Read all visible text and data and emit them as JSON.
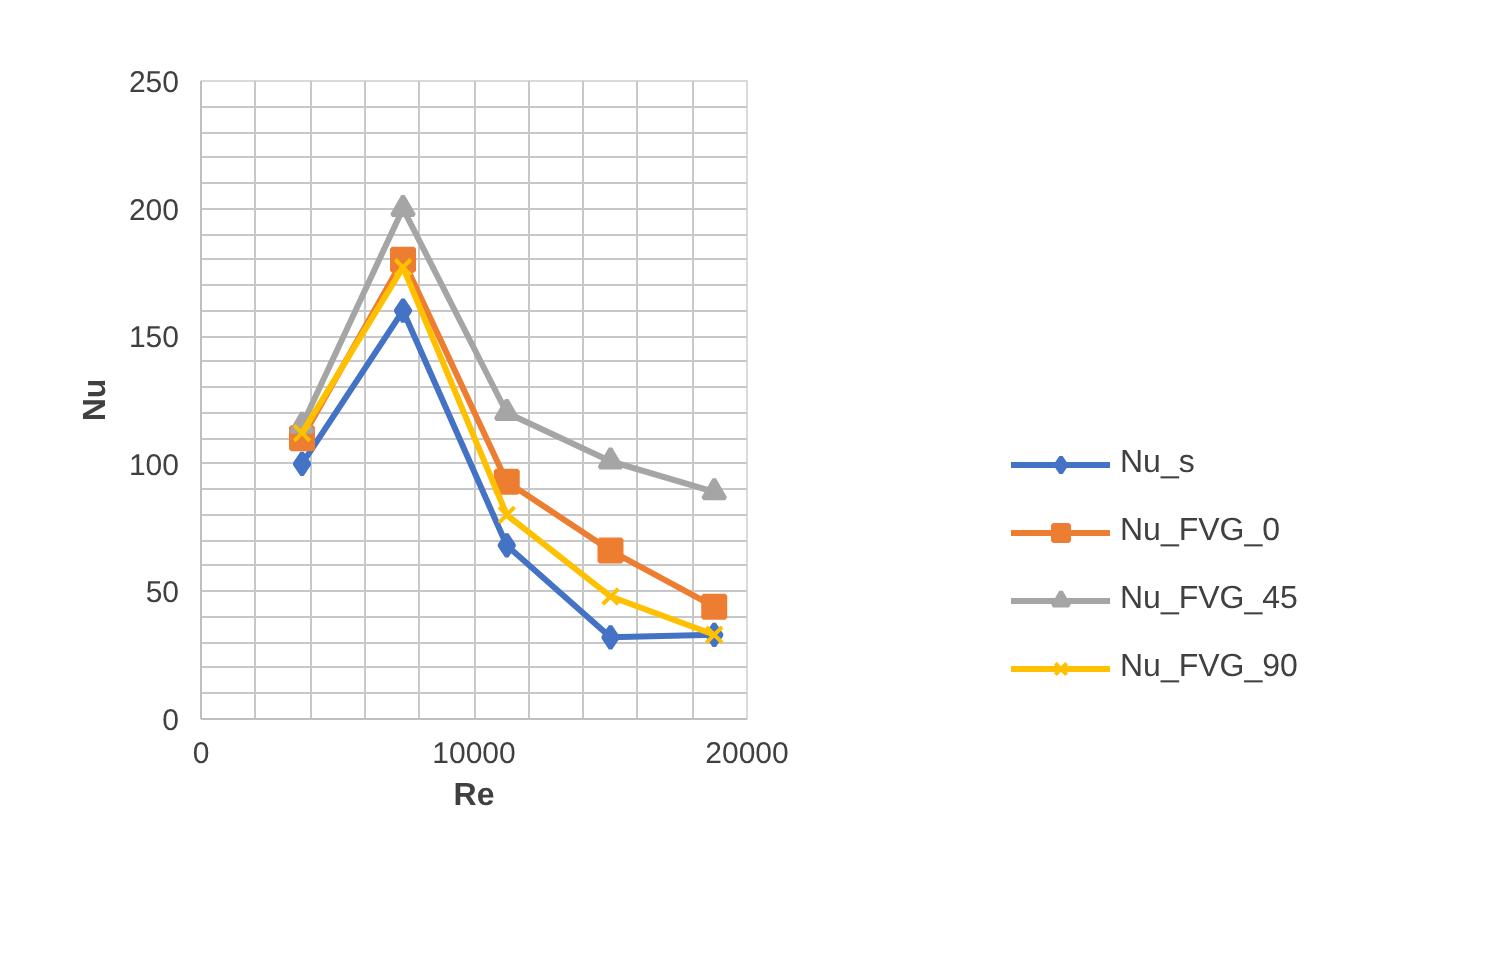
{
  "chart_data": {
    "type": "line",
    "xlabel": "Re",
    "ylabel": "Nu",
    "x": [
      3700,
      7400,
      11200,
      15000,
      18800
    ],
    "series": [
      {
        "name": "Nu_s",
        "color": "#4472c4",
        "marker": "diamond",
        "values": [
          100,
          160,
          68,
          32,
          33
        ]
      },
      {
        "name": "Nu_FVG_0",
        "color": "#ed7d31",
        "marker": "square",
        "values": [
          110,
          180,
          93,
          66,
          44
        ]
      },
      {
        "name": "Nu_FVG_45",
        "color": "#a5a5a5",
        "marker": "triangle",
        "values": [
          115,
          200,
          120,
          101,
          89
        ]
      },
      {
        "name": "Nu_FVG_90",
        "color": "#ffc000",
        "marker": "cross",
        "values": [
          112,
          177,
          80,
          48,
          33
        ]
      }
    ],
    "xlim": [
      0,
      20000
    ],
    "xticks": [
      0,
      {
        "value": 2000,
        "label": null
      },
      {
        "value": 4000,
        "label": null
      },
      {
        "value": 6000,
        "label": null
      },
      {
        "value": 8000,
        "label": null
      },
      10000,
      {
        "value": 12000,
        "label": null
      },
      {
        "value": 14000,
        "label": null
      },
      {
        "value": 16000,
        "label": null
      },
      {
        "value": 18000,
        "label": null
      },
      20000
    ],
    "ylim": [
      0,
      250
    ],
    "yticks": [
      0,
      {
        "value": 10,
        "label": null
      },
      {
        "value": 20,
        "label": null
      },
      {
        "value": 30,
        "label": null
      },
      {
        "value": 40,
        "label": null
      },
      50,
      {
        "value": 60,
        "label": null
      },
      {
        "value": 70,
        "label": null
      },
      {
        "value": 80,
        "label": null
      },
      {
        "value": 90,
        "label": null
      },
      100,
      {
        "value": 110,
        "label": null
      },
      {
        "value": 120,
        "label": null
      },
      {
        "value": 130,
        "label": null
      },
      {
        "value": 140,
        "label": null
      },
      150,
      {
        "value": 160,
        "label": null
      },
      {
        "value": 170,
        "label": null
      },
      {
        "value": 180,
        "label": null
      },
      {
        "value": 190,
        "label": null
      },
      200,
      {
        "value": 210,
        "label": null
      },
      {
        "value": 220,
        "label": null
      },
      {
        "value": 230,
        "label": null
      },
      {
        "value": 240,
        "label": null
      },
      250
    ],
    "grid": true,
    "legend": "right",
    "line_style": "solid"
  }
}
